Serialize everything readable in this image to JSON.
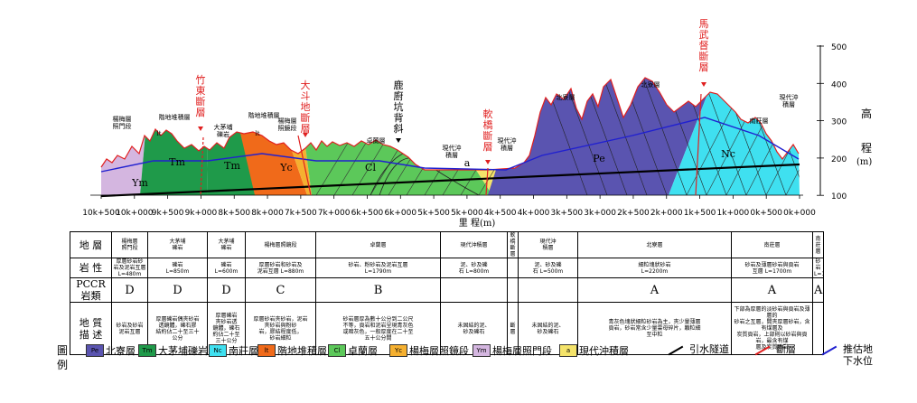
{
  "profile": {
    "elevation_label_chars": [
      "高",
      "程"
    ],
    "elevation_unit": "(m)",
    "y_ticks": [
      "500",
      "400",
      "300",
      "200",
      "100"
    ],
    "x_ticks": [
      "10k+500",
      "10k+000",
      "9k+500",
      "9k+000",
      "8k+500",
      "8k+000",
      "7k+500",
      "7k+000",
      "6k+500",
      "6k+000",
      "5k+500",
      "5k+000",
      "4k+500",
      "4k+000",
      "3k+500",
      "3k+000",
      "2k+500",
      "2k+000",
      "1k+500",
      "1k+000",
      "0k+500",
      "0k+000"
    ],
    "x_axis_label": "里  程(m)",
    "faults": [
      "竹\n東\n斷\n層",
      "大\n斗\n地\n斷\n層",
      "軟\n橋\n斷\n層",
      "馬\n武\n督\n斷\n層"
    ],
    "anticline": "鹿\n廚\n坑\n背\n斜",
    "formation_labels": [
      "楊梅層\n照門段",
      "階地堆積層",
      "大茅埔\n礫岩",
      "階地堆積層",
      "楊梅層\n照鏡段",
      "卓蘭層",
      "現代沖\n積層",
      "現代沖\n積層",
      "北寮層",
      "北寮層",
      "南莊層",
      "現代沖\n積層"
    ],
    "zone_codes": [
      "Ym",
      "Tm",
      "Tm",
      "Yc",
      "Cl",
      "a",
      "Pe",
      "Nc",
      "lt",
      "lt"
    ]
  },
  "table": {
    "row_headers": [
      "地  層",
      "岩  性",
      "PCCR\n岩類",
      "地  質\n描  述"
    ],
    "columns": [
      {
        "formation": "楊梅層\n照門段",
        "lithology": "厚層砂岩砂\n岩及泥岩互層\nL=480m",
        "rock": "D",
        "desc": "砂岩及砂岩\n泥岩互層"
      },
      {
        "formation": "大茅埔\n礫岩",
        "lithology": "礫岩\nL=850m",
        "rock": "D",
        "desc": "厚層礫岩偶夾砂岩\n透鏡體，礫石膠\n結約佔二十至三十\n公分"
      },
      {
        "formation": "大茅埔\n礫岩",
        "lithology": "礫岩\nL=600m",
        "rock": "D",
        "desc": "厚層礫岩\n夾砂岩透\n鏡體，礫石\n約佔二十至\n三十公分"
      },
      {
        "formation": "楊梅層照鏡段",
        "lithology": "厚層砂岩和砂岩及\n泥岩互層 L=880m",
        "rock": "C",
        "desc": "厚層砂岩夾砂岩，泥岩\n夾砂岩與粉砂\n岩，膠結程度低，\n砂岩細粒"
      },
      {
        "formation": "卓蘭層",
        "lithology": "砂岩、粉砂岩及泥岩互層\nL=1790m",
        "rock": "B",
        "desc": "砂岩層厚為數十公分到二公尺\n不等，頁岩和泥岩呈現青灰色\n或暗灰色，一般厚度在二十至\n五十公分間"
      },
      {
        "formation": "現代沖積層",
        "lithology": "泥、砂及礫\n石 L=800m",
        "rock": "",
        "desc": "未固結的泥、\n砂及礫石"
      },
      {
        "formation": "軟橋\n斷層",
        "lithology": "",
        "rock": "",
        "desc": "斷\n層"
      },
      {
        "formation": "現代沖\n積層",
        "lithology": "泥、砂及礫\n石 L=500m",
        "rock": "",
        "desc": "未固結的泥、\n砂及礫石"
      },
      {
        "formation": "北寮層",
        "lithology": "細粒塊狀砂岩\nL=2200m",
        "rock": "A",
        "desc": "青灰色塊狀細粒砂岩為主，夾少量薄層\n頁岩，砂岩常含少量雲母碎片，顆粒細\n至中粒"
      },
      {
        "formation": "南莊層",
        "lithology": "砂岩及薄層砂岩與頁岩\n互層  L=1700m",
        "rock": "A",
        "desc": "下部為厚層的淡砂岩與頁岩及薄層的\n砂岩之互層，間夾厚層砂岩，含有煤層及\n炭質頁岩，上部則以砂岩與頁岩，最含有煤\n層及炭質頁岩"
      },
      {
        "formation": "南\n莊\n層",
        "lithology": "砂岩\nL=170m",
        "rock": "A",
        "desc": ""
      }
    ]
  },
  "legend": {
    "title": "圖\n例",
    "items": [
      {
        "code": "Pe",
        "label": "北寮層",
        "color": "#5a54b0"
      },
      {
        "code": "Tm",
        "label": "大茅埔礫岩",
        "color": "#1f9a4a"
      },
      {
        "code": "Nc",
        "label": "南莊層",
        "color": "#3fe0f0"
      },
      {
        "code": "lt",
        "label": "階地堆積層",
        "color": "#f06a1a"
      },
      {
        "code": "Cl",
        "label": "卓蘭層",
        "color": "#5cc85a"
      },
      {
        "code": "Yc",
        "label": "楊梅層照鏡段",
        "color": "#f5b030"
      },
      {
        "code": "Ym",
        "label": "楊梅層照門段",
        "color": "#d4b6e0"
      },
      {
        "code": "a",
        "label": "現代沖積層",
        "color": "#f4e36a"
      }
    ],
    "lines": [
      {
        "label": "引水隧道",
        "color": "#000000"
      },
      {
        "label": "斷層",
        "color": "#e02020"
      },
      {
        "label": "推估地\n下水位",
        "color": "#2020d0"
      }
    ]
  },
  "colors": {
    "fault_text": "#e02020",
    "Pe": "#5a54b0",
    "Tm": "#1f9a4a",
    "Nc": "#3fe0f0",
    "lt": "#f06a1a",
    "Cl": "#5cc85a",
    "Yc": "#f5b030",
    "Ym": "#d4b6e0",
    "a": "#f4e36a"
  }
}
